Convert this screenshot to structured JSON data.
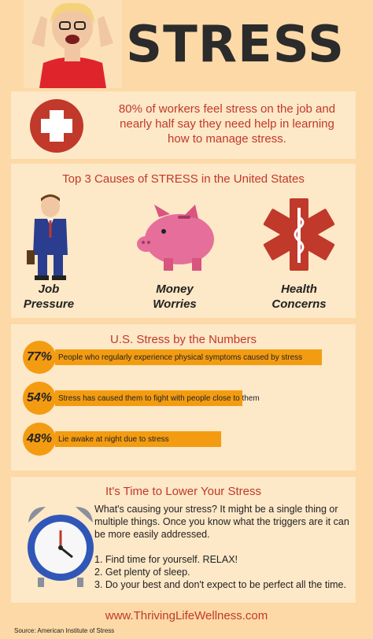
{
  "header": {
    "title": "STRESS"
  },
  "intro": {
    "text": "80% of workers feel stress on the job and nearly half say they need help in learning how to manage stress."
  },
  "causes": {
    "title": "Top 3 Causes of STRESS in the United States",
    "items": [
      {
        "line1": "Job",
        "line2": "Pressure",
        "icon": "businessman-icon"
      },
      {
        "line1": "Money",
        "line2": "Worries",
        "icon": "piggy-bank-icon"
      },
      {
        "line1": "Health",
        "line2": "Concerns",
        "icon": "medical-star-icon"
      }
    ]
  },
  "numbers": {
    "title": "U.S. Stress by the Numbers",
    "stats": [
      {
        "percent": "77%",
        "value": 77,
        "text": "People who regularly experience physical symptoms caused by stress"
      },
      {
        "percent": "54%",
        "value": 54,
        "text": "Stress has caused them to fight with people close to them"
      },
      {
        "percent": "48%",
        "value": 48,
        "text": "Lie awake at night due to stress"
      }
    ]
  },
  "lower": {
    "title": "It's Time to Lower Your Stress",
    "text": "What's causing your stress? It might be a single thing or multiple things. Once you know what the triggers are it can be more easily addressed.",
    "tips": [
      "1. Find time for yourself. RELAX!",
      "2. Get plenty of sleep.",
      "3. Do your best and don't expect to be perfect all the time."
    ]
  },
  "footer": {
    "url": "www.ThrivingLifeWellness.com",
    "source": "Source: American Institute of Stress"
  },
  "colors": {
    "accent_red": "#c0392b",
    "accent_orange": "#f39c12",
    "background": "#fcd9a6",
    "panel": "#fde8c7"
  }
}
